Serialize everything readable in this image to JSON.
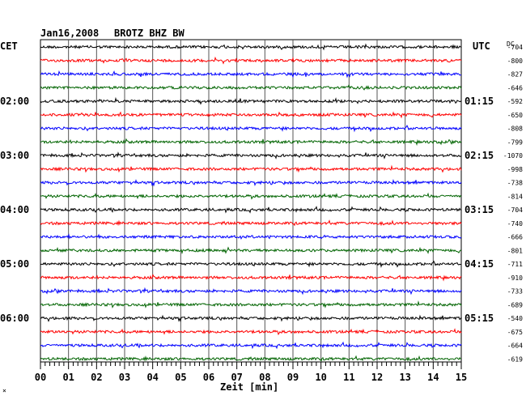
{
  "header": {
    "date": "Jan16,2008",
    "station": "BROTZ BHZ BW",
    "left_zone": "CET",
    "right_zone": "UTC",
    "offset_label": "DC"
  },
  "xaxis": {
    "label": "Zeit [min]",
    "ticks": [
      "00",
      "01",
      "02",
      "03",
      "04",
      "05",
      "06",
      "07",
      "08",
      "09",
      "10",
      "11",
      "12",
      "13",
      "14",
      "15"
    ]
  },
  "corner_mark": "×",
  "chart_data": {
    "type": "line",
    "title": "Jan16,2008   BROTZ BHZ BW",
    "xlabel": "Zeit [min]",
    "ylabel": "",
    "xlim": [
      0,
      15
    ],
    "grid": true,
    "left_time_labels": [
      {
        "row": 4,
        "text": "02:00"
      },
      {
        "row": 8,
        "text": "03:00"
      },
      {
        "row": 12,
        "text": "04:00"
      },
      {
        "row": 16,
        "text": "05:00"
      },
      {
        "row": 20,
        "text": "06:00"
      }
    ],
    "right_time_labels": [
      {
        "row": 4,
        "text": "01:15"
      },
      {
        "row": 8,
        "text": "02:15"
      },
      {
        "row": 12,
        "text": "03:15"
      },
      {
        "row": 16,
        "text": "04:15"
      },
      {
        "row": 20,
        "text": "05:15"
      }
    ],
    "series": [
      {
        "color": "#000000",
        "offset": "-704"
      },
      {
        "color": "#ff0000",
        "offset": "-800"
      },
      {
        "color": "#0000ff",
        "offset": "-827"
      },
      {
        "color": "#006400",
        "offset": "-646"
      },
      {
        "color": "#000000",
        "offset": "-592"
      },
      {
        "color": "#ff0000",
        "offset": "-650"
      },
      {
        "color": "#0000ff",
        "offset": "-808"
      },
      {
        "color": "#006400",
        "offset": "-799"
      },
      {
        "color": "#000000",
        "offset": "-1070"
      },
      {
        "color": "#ff0000",
        "offset": "-998"
      },
      {
        "color": "#0000ff",
        "offset": "-738"
      },
      {
        "color": "#006400",
        "offset": "-814"
      },
      {
        "color": "#000000",
        "offset": "-704"
      },
      {
        "color": "#ff0000",
        "offset": "-740"
      },
      {
        "color": "#0000ff",
        "offset": "-666"
      },
      {
        "color": "#006400",
        "offset": "-801"
      },
      {
        "color": "#000000",
        "offset": "-711"
      },
      {
        "color": "#ff0000",
        "offset": "-910"
      },
      {
        "color": "#0000ff",
        "offset": "-733"
      },
      {
        "color": "#006400",
        "offset": "-689"
      },
      {
        "color": "#000000",
        "offset": "-540"
      },
      {
        "color": "#ff0000",
        "offset": "-675"
      },
      {
        "color": "#0000ff",
        "offset": "-664"
      },
      {
        "color": "#006400",
        "offset": "-619"
      }
    ]
  }
}
